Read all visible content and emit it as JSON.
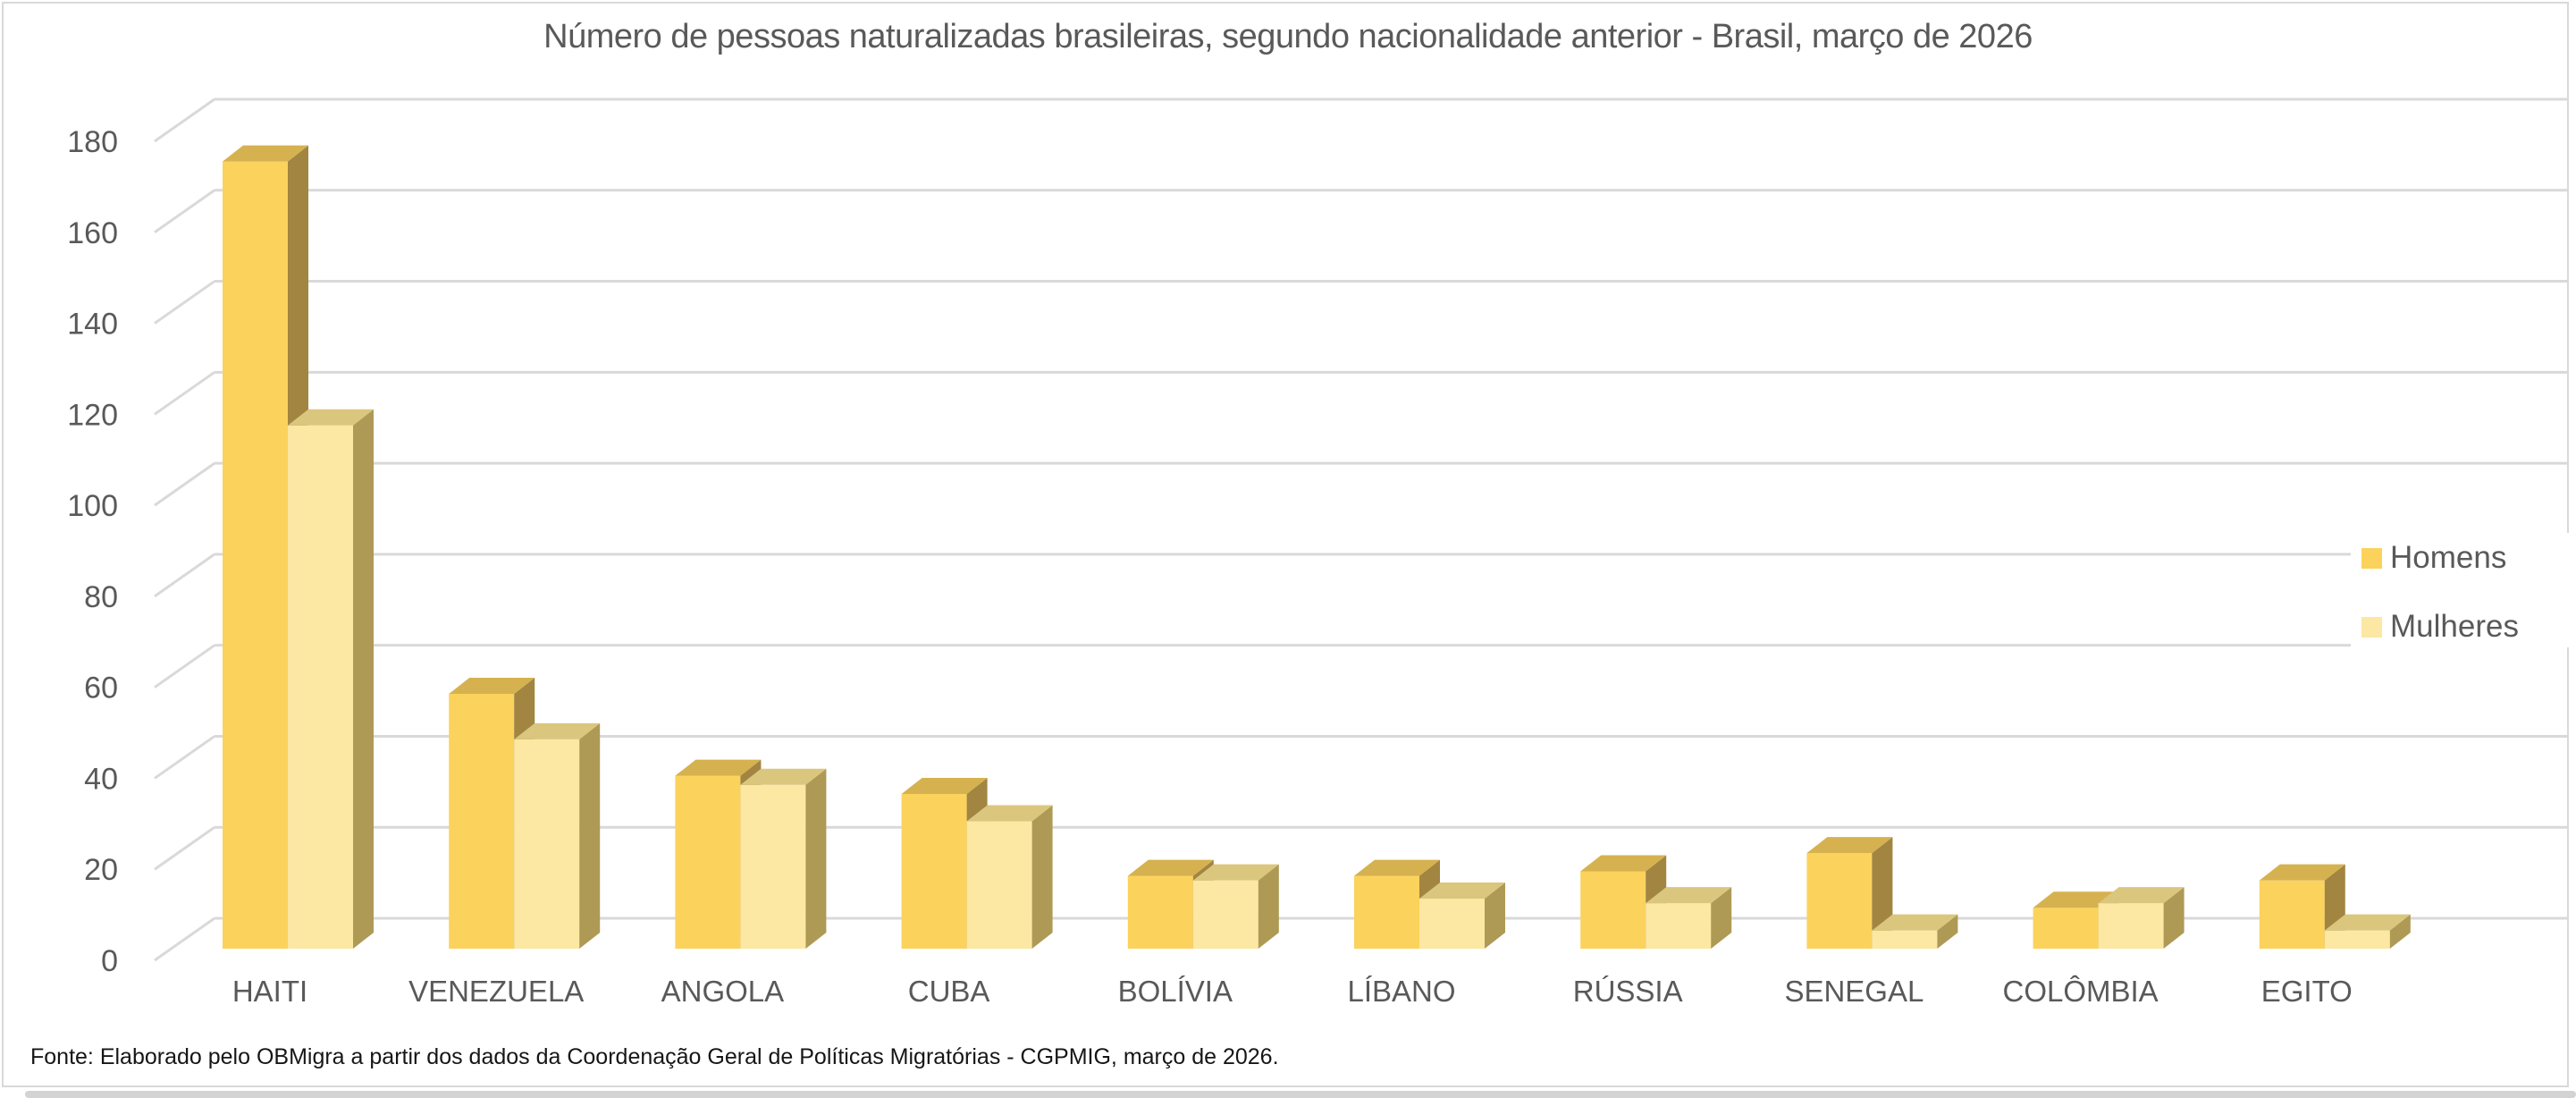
{
  "title": "Número de pessoas naturalizadas brasileiras, segundo nacionalidade anterior - Brasil, março de 2026",
  "source_note": "Fonte: Elaborado pelo OBMigra a partir dos dados da Coordenação Geral de Políticas Migratórias - CGPMIG, março de 2026.",
  "colors": {
    "gridline": "#D9D9D9",
    "axis_text": "#595959",
    "title_text": "#595959",
    "source_text": "#161616",
    "chart_border": "#D9D9D9",
    "scrollbar": "#D3D3D3",
    "background": "#FFFFFF"
  },
  "legend": {
    "position": "right",
    "items": [
      {
        "label": "Homens",
        "swatch_color": "#FBD25C"
      },
      {
        "label": "Mulheres",
        "swatch_color": "#FCE7A3"
      }
    ]
  },
  "chart_data": {
    "type": "bar",
    "style": "3d-clustered-column",
    "title": "Número de pessoas naturalizadas brasileiras, segundo nacionalidade anterior - Brasil, março de 2026",
    "categories": [
      "HAITI",
      "VENEZUELA",
      "ANGOLA",
      "CUBA",
      "BOLÍVIA",
      "LÍBANO",
      "RÚSSIA",
      "SENEGAL",
      "COLÔMBIA",
      "EGITO"
    ],
    "series": [
      {
        "name": "Homens",
        "values": [
          173,
          56,
          38,
          34,
          16,
          16,
          17,
          21,
          9,
          15
        ],
        "colors": {
          "front": "#FBD25C",
          "top": "#D5B24F",
          "side": "#A18540"
        }
      },
      {
        "name": "Mulheres",
        "values": [
          115,
          46,
          36,
          28,
          15,
          11,
          10,
          4,
          10,
          4
        ],
        "colors": {
          "front": "#FCE7A3",
          "top": "#DBC67E",
          "side": "#AE9A55"
        }
      }
    ],
    "xlabel": "",
    "ylabel": "",
    "ylim": [
      0,
      180
    ],
    "ytick_step": 20,
    "yticks": [
      0,
      20,
      40,
      60,
      80,
      100,
      120,
      140,
      160,
      180
    ],
    "grid": true,
    "legend_position": "right"
  }
}
